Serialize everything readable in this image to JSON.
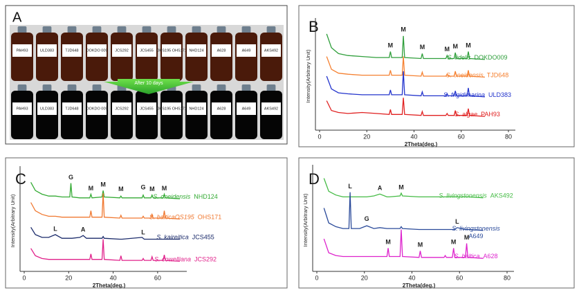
{
  "photo": {
    "panel": "A",
    "caption": "After 10 days",
    "labels": [
      "PAH93",
      "ULD383",
      "TJD648",
      "DOKDO 009",
      "JCS292",
      "JCS455",
      "OHS195 OHS171",
      "NHD124",
      "A628",
      "A649",
      "AKS492"
    ]
  },
  "chart_data": [
    {
      "type": "line",
      "panel": "B",
      "xlabel": "2Theta(deg.)",
      "ylabel": "Intensity(Arbitrary Unit)",
      "xlim": [
        0,
        80
      ],
      "xticks": [
        0,
        20,
        40,
        60,
        80
      ],
      "ylim": [
        0,
        110
      ],
      "x": [
        3,
        5,
        8,
        12,
        18,
        24,
        29.5,
        30,
        30.5,
        35,
        35.5,
        36,
        43,
        43.5,
        44,
        53.5,
        54,
        54.5,
        57,
        57.5,
        58,
        62.5,
        63,
        63.5,
        70
      ],
      "series": [
        {
          "name": "S. fidelis",
          "strain": "DOKDO009",
          "color": "#2e9e3a",
          "values": [
            98,
            84,
            78,
            76,
            75,
            74,
            74,
            80,
            74,
            74,
            96,
            74,
            73,
            78,
            73,
            73,
            76,
            73,
            73,
            79,
            73,
            73,
            80,
            73,
            72
          ]
        },
        {
          "name": "S. oneidensis",
          "strain": "TJD648",
          "color": "#f58030",
          "values": [
            75,
            62,
            58,
            57,
            56,
            56,
            56,
            61,
            56,
            56,
            75,
            56,
            55,
            59,
            55,
            55,
            57,
            55,
            55,
            60,
            55,
            55,
            61,
            55,
            54
          ]
        },
        {
          "name": "S. frigidimarina",
          "strain": "ULD383",
          "color": "#2233cc",
          "values": [
            55,
            42,
            38,
            37,
            36,
            36,
            36,
            41,
            36,
            36,
            60,
            36,
            35,
            39,
            35,
            35,
            37,
            35,
            35,
            40,
            35,
            35,
            43,
            35,
            34
          ]
        },
        {
          "name": "S. algae",
          "strain": "PAH93",
          "color": "#e02020",
          "values": [
            30,
            20,
            18,
            17,
            18,
            17,
            16,
            21,
            16,
            16,
            33,
            16,
            15,
            19,
            15,
            15,
            17,
            15,
            15,
            20,
            15,
            15,
            22,
            15,
            14
          ]
        }
      ],
      "annotations": [
        {
          "label": "M",
          "x": 30,
          "y": 86
        },
        {
          "label": "M",
          "x": 35.5,
          "y": 102
        },
        {
          "label": "M",
          "x": 43.5,
          "y": 84
        },
        {
          "label": "M",
          "x": 54,
          "y": 82
        },
        {
          "label": "M",
          "x": 57.5,
          "y": 85
        },
        {
          "label": "M",
          "x": 63,
          "y": 86
        }
      ]
    },
    {
      "type": "line",
      "panel": "C",
      "xlabel": "2Theta(deg.)",
      "ylabel": "Intensity(Arbitrary Unit)",
      "xlim": [
        0,
        70
      ],
      "xticks": [
        0,
        20,
        40,
        60
      ],
      "ylim": [
        0,
        110
      ],
      "x": [
        3,
        5,
        8,
        11,
        14,
        17,
        20.5,
        21,
        21.5,
        25,
        26.5,
        28,
        29.5,
        30,
        30.5,
        35,
        35.5,
        36,
        43,
        43.5,
        44,
        53,
        53.5,
        54,
        57,
        57.5,
        58,
        62.5,
        63,
        63.5,
        70
      ],
      "series": [
        {
          "name": "S. oneidensis",
          "strain": "NHD124",
          "color": "#33aa33",
          "values": [
            97,
            88,
            84,
            82,
            82,
            81,
            81,
            96,
            81,
            80,
            80,
            80,
            80,
            84,
            80,
            81,
            88,
            81,
            80,
            82,
            80,
            80,
            83,
            80,
            80,
            83,
            80,
            80,
            84,
            80,
            79
          ]
        },
        {
          "name": "S. balticaOS195",
          "strain": "OHS171",
          "color": "#f07830",
          "values": [
            75,
            66,
            62,
            60,
            60,
            59,
            59,
            59,
            59,
            59,
            59,
            59,
            59,
            66,
            59,
            59,
            85,
            59,
            58,
            61,
            58,
            58,
            60,
            58,
            58,
            62,
            58,
            58,
            66,
            58,
            57
          ]
        },
        {
          "name": "S. kaireitica",
          "strain": "JCS455",
          "color": "#1a2a6a",
          "values": [
            48,
            40,
            37,
            37,
            40,
            36,
            36,
            36,
            36,
            37,
            39,
            36,
            36,
            36,
            36,
            36,
            38,
            36,
            35,
            35,
            35,
            37,
            36,
            35,
            35,
            35,
            35,
            35,
            35,
            35,
            35
          ]
        },
        {
          "name": "S. cowelliana",
          "strain": "JCS292",
          "color": "#e0208a",
          "values": [
            25,
            17,
            14,
            13,
            13,
            13,
            13,
            13,
            13,
            13,
            13,
            13,
            13,
            19,
            13,
            13,
            35,
            13,
            12,
            17,
            12,
            12,
            14,
            12,
            12,
            16,
            12,
            12,
            18,
            12,
            11
          ]
        }
      ],
      "annotations": [
        {
          "label": "G",
          "x": 21,
          "y": 102
        },
        {
          "label": "M",
          "x": 30,
          "y": 90
        },
        {
          "label": "M",
          "x": 35.5,
          "y": 94
        },
        {
          "label": "M",
          "x": 43.5,
          "y": 89
        },
        {
          "label": "G",
          "x": 53.5,
          "y": 91
        },
        {
          "label": "M",
          "x": 57.5,
          "y": 89
        },
        {
          "label": "M",
          "x": 63,
          "y": 90
        },
        {
          "label": "L",
          "x": 14,
          "y": 46
        },
        {
          "label": "A",
          "x": 26.5,
          "y": 45
        },
        {
          "label": "L",
          "x": 53.5,
          "y": 42
        }
      ]
    },
    {
      "type": "line",
      "panel": "D",
      "xlabel": "2Theta(deg.)",
      "ylabel": "Intensity(Arbitrary Unit)",
      "xlim": [
        0,
        80
      ],
      "xticks": [
        0,
        20,
        40,
        60,
        80
      ],
      "ylim": [
        0,
        110
      ],
      "x": [
        3,
        5,
        8,
        11,
        13.5,
        14,
        14.5,
        18,
        21,
        24,
        26.5,
        29.5,
        30,
        30.5,
        35,
        35.5,
        36,
        43,
        43.5,
        44,
        53.5,
        54,
        54.5,
        57,
        57.5,
        58,
        59,
        62.5,
        63,
        63.5,
        70
      ],
      "series": [
        {
          "name": "S. livingstonensis",
          "strain": "AKS492",
          "color": "#44bb44",
          "values": [
            100,
            86,
            82,
            80,
            80,
            80,
            80,
            80,
            80,
            81,
            83,
            80,
            80,
            80,
            81,
            84,
            81,
            80,
            80,
            80,
            80,
            80,
            80,
            80,
            80,
            80,
            80,
            80,
            80,
            80,
            79
          ]
        },
        {
          "name": "S. livingstonensis",
          "strain": "A649",
          "color": "#2a4a9a",
          "values": [
            68,
            52,
            48,
            46,
            46,
            85,
            46,
            46,
            49,
            46,
            47,
            46,
            46,
            46,
            46,
            48,
            46,
            45,
            45,
            45,
            45,
            45,
            45,
            45,
            45,
            45,
            47,
            45,
            45,
            45,
            44
          ]
        },
        {
          "name": "S. baltica",
          "strain": "A628",
          "color": "#dd22cc",
          "values": [
            35,
            20,
            17,
            16,
            16,
            16,
            16,
            16,
            16,
            16,
            16,
            16,
            25,
            16,
            16,
            45,
            16,
            15,
            22,
            15,
            15,
            17,
            15,
            15,
            25,
            15,
            15,
            15,
            30,
            15,
            14
          ]
        }
      ],
      "annotations": [
        {
          "label": "L",
          "x": 14,
          "y": 91
        },
        {
          "label": "A",
          "x": 26.5,
          "y": 89
        },
        {
          "label": "M",
          "x": 35.5,
          "y": 90
        },
        {
          "label": "G",
          "x": 21,
          "y": 56
        },
        {
          "label": "L",
          "x": 59,
          "y": 53
        },
        {
          "label": "M",
          "x": 30,
          "y": 31
        },
        {
          "label": "M",
          "x": 43.5,
          "y": 28
        },
        {
          "label": "M",
          "x": 57.5,
          "y": 31
        },
        {
          "label": "M",
          "x": 63,
          "y": 36
        }
      ]
    }
  ]
}
